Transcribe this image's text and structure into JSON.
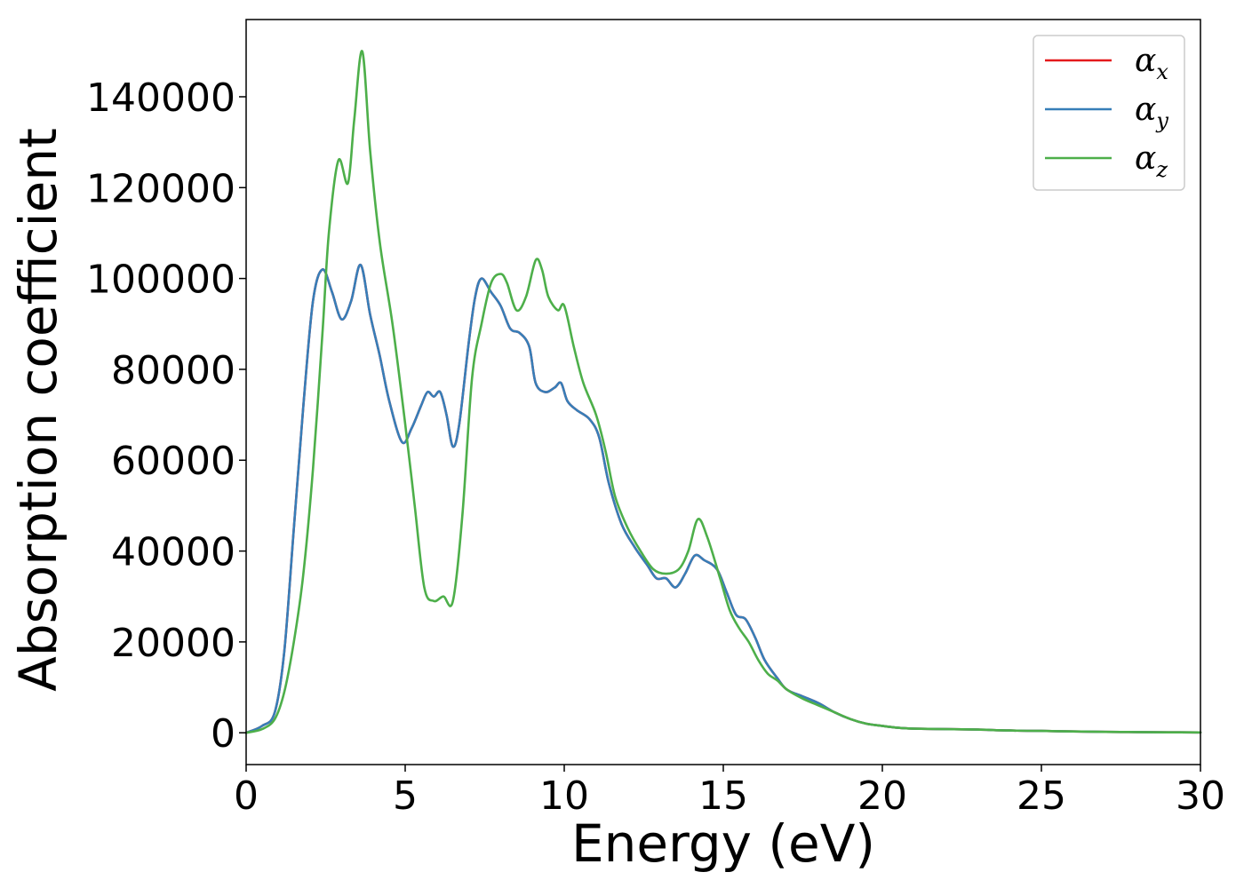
{
  "chart_data": {
    "type": "line",
    "xlabel": "Energy (eV)",
    "ylabel": "Absorption coefficient",
    "xlim": [
      0,
      30
    ],
    "ylim": [
      -7000,
      157000
    ],
    "xticks": [
      0,
      5,
      10,
      15,
      20,
      25,
      30
    ],
    "yticks": [
      0,
      20000,
      40000,
      60000,
      80000,
      100000,
      120000,
      140000
    ],
    "grid": false,
    "legend_position": "top-right",
    "series": [
      {
        "name": "α",
        "subscript": "x",
        "color": "#e41a1c",
        "x": [
          0,
          0.5,
          0.9,
          1.2,
          1.5,
          1.8,
          2.1,
          2.4,
          2.7,
          3.0,
          3.3,
          3.6,
          3.9,
          4.2,
          4.5,
          4.9,
          5.2,
          5.5,
          5.7,
          5.9,
          6.1,
          6.3,
          6.5,
          6.7,
          7.0,
          7.2,
          7.4,
          7.7,
          8.0,
          8.3,
          8.6,
          8.9,
          9.1,
          9.4,
          9.7,
          9.9,
          10.1,
          10.4,
          10.8,
          11.1,
          11.4,
          11.8,
          12.2,
          12.6,
          12.9,
          13.2,
          13.5,
          13.8,
          14.1,
          14.4,
          14.8,
          15.1,
          15.4,
          15.7,
          16.0,
          16.3,
          16.7,
          17.0,
          17.5,
          18.0,
          18.5,
          19.0,
          19.5,
          20.0,
          20.5,
          21.0,
          22.0,
          23.0,
          24.0,
          25.0,
          26.0,
          27.0,
          28.0,
          29.0,
          30.0
        ],
        "y": [
          0,
          1500,
          4500,
          18000,
          45000,
          72000,
          95000,
          102000,
          97000,
          91000,
          95000,
          103000,
          92000,
          83000,
          73000,
          64000,
          67000,
          72000,
          75000,
          74000,
          75000,
          70000,
          63000,
          68000,
          86000,
          96000,
          100000,
          97000,
          94000,
          89000,
          88000,
          85000,
          77000,
          75000,
          76000,
          77000,
          73000,
          71000,
          69000,
          65000,
          55000,
          46000,
          41000,
          37000,
          34000,
          34000,
          32000,
          35000,
          39000,
          38000,
          36000,
          31000,
          26000,
          25000,
          21000,
          16000,
          12000,
          9500,
          8000,
          6500,
          4500,
          3000,
          2000,
          1500,
          1100,
          900,
          800,
          700,
          500,
          400,
          300,
          200,
          150,
          100,
          80
        ]
      },
      {
        "name": "α",
        "subscript": "y",
        "color": "#377eb8",
        "x": [
          0,
          0.5,
          0.9,
          1.2,
          1.5,
          1.8,
          2.1,
          2.4,
          2.7,
          3.0,
          3.3,
          3.6,
          3.9,
          4.2,
          4.5,
          4.9,
          5.2,
          5.5,
          5.7,
          5.9,
          6.1,
          6.3,
          6.5,
          6.7,
          7.0,
          7.2,
          7.4,
          7.7,
          8.0,
          8.3,
          8.6,
          8.9,
          9.1,
          9.4,
          9.7,
          9.9,
          10.1,
          10.4,
          10.8,
          11.1,
          11.4,
          11.8,
          12.2,
          12.6,
          12.9,
          13.2,
          13.5,
          13.8,
          14.1,
          14.4,
          14.8,
          15.1,
          15.4,
          15.7,
          16.0,
          16.3,
          16.7,
          17.0,
          17.5,
          18.0,
          18.5,
          19.0,
          19.5,
          20.0,
          20.5,
          21.0,
          22.0,
          23.0,
          24.0,
          25.0,
          26.0,
          27.0,
          28.0,
          29.0,
          30.0
        ],
        "y": [
          0,
          1500,
          4500,
          18000,
          45000,
          72000,
          95000,
          102000,
          97000,
          91000,
          95000,
          103000,
          92000,
          83000,
          73000,
          64000,
          67000,
          72000,
          75000,
          74000,
          75000,
          70000,
          63000,
          68000,
          86000,
          96000,
          100000,
          97000,
          94000,
          89000,
          88000,
          85000,
          77000,
          75000,
          76000,
          77000,
          73000,
          71000,
          69000,
          65000,
          55000,
          46000,
          41000,
          37000,
          34000,
          34000,
          32000,
          35000,
          39000,
          38000,
          36000,
          31000,
          26000,
          25000,
          21000,
          16000,
          12000,
          9500,
          8000,
          6500,
          4500,
          3000,
          2000,
          1500,
          1100,
          900,
          800,
          700,
          500,
          400,
          300,
          200,
          150,
          100,
          80
        ]
      },
      {
        "name": "α",
        "subscript": "z",
        "color": "#4daf4a",
        "x": [
          0,
          0.5,
          0.9,
          1.2,
          1.5,
          1.8,
          2.1,
          2.4,
          2.6,
          2.9,
          3.2,
          3.4,
          3.65,
          3.9,
          4.2,
          4.6,
          5.0,
          5.3,
          5.6,
          5.9,
          6.2,
          6.5,
          6.8,
          7.1,
          7.4,
          7.7,
          8.0,
          8.2,
          8.5,
          8.8,
          9.1,
          9.3,
          9.5,
          9.8,
          10.0,
          10.3,
          10.6,
          11.0,
          11.3,
          11.6,
          12.0,
          12.4,
          12.8,
          13.2,
          13.6,
          13.9,
          14.2,
          14.5,
          14.9,
          15.2,
          15.5,
          15.8,
          16.1,
          16.4,
          16.7,
          17.0,
          17.5,
          18.0,
          18.5,
          19.0,
          19.5,
          20.0,
          20.5,
          21.0,
          22.0,
          23.0,
          24.0,
          25.0,
          26.0,
          27.0,
          28.0,
          29.0,
          30.0
        ],
        "y": [
          0,
          800,
          3000,
          9000,
          20000,
          35000,
          58000,
          88000,
          110000,
          126000,
          121000,
          135000,
          150000,
          128000,
          108000,
          90000,
          68000,
          50000,
          32000,
          29000,
          30000,
          29000,
          48000,
          78000,
          90000,
          99000,
          101000,
          99000,
          93000,
          96000,
          104000,
          102000,
          96000,
          93000,
          94000,
          85000,
          77000,
          70000,
          62000,
          52000,
          45000,
          40000,
          36000,
          35000,
          36000,
          40000,
          47000,
          43000,
          34000,
          27000,
          23000,
          20000,
          16000,
          13000,
          11500,
          9500,
          7500,
          6000,
          4500,
          3000,
          2000,
          1500,
          1100,
          900,
          800,
          700,
          500,
          400,
          300,
          200,
          150,
          100,
          80
        ]
      }
    ]
  }
}
